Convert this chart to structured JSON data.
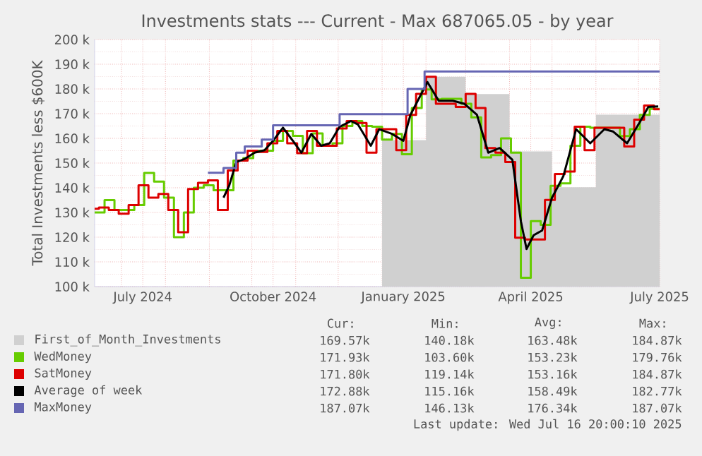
{
  "chart_data": {
    "type": "line",
    "title": "Investments stats --- Current - Max 687065.05 - by year",
    "ylabel": "Total Investments less $600K",
    "xlim": [
      "2024-06-12",
      "2025-07-16"
    ],
    "xticks": [
      {
        "value": "2024-07-16",
        "label": "July 2024"
      },
      {
        "value": "2024-10-16",
        "label": "October 2024"
      },
      {
        "value": "2025-01-16",
        "label": "January 2025"
      },
      {
        "value": "2025-04-16",
        "label": "April 2025"
      },
      {
        "value": "2025-07-16",
        "label": "July 2025"
      },
      {
        "value": "2024-07-01",
        "label": null
      },
      {
        "value": "2024-08-01",
        "label": null
      },
      {
        "value": "2024-09-01",
        "label": null
      },
      {
        "value": "2024-10-01",
        "label": null
      },
      {
        "value": "2024-11-01",
        "label": null
      },
      {
        "value": "2024-12-01",
        "label": null
      },
      {
        "value": "2025-01-01",
        "label": null
      },
      {
        "value": "2025-02-01",
        "label": null
      },
      {
        "value": "2025-03-01",
        "label": null
      },
      {
        "value": "2025-04-01",
        "label": null
      },
      {
        "value": "2025-05-01",
        "label": null
      },
      {
        "value": "2025-06-01",
        "label": null
      },
      {
        "value": "2025-07-01",
        "label": null
      }
    ],
    "ylim": [
      100,
      200
    ],
    "yticks": [
      {
        "value": 100,
        "label": "100 k"
      },
      {
        "value": 110,
        "label": "110 k"
      },
      {
        "value": 120,
        "label": "120 k"
      },
      {
        "value": 130,
        "label": "130 k"
      },
      {
        "value": 140,
        "label": "140 k"
      },
      {
        "value": 150,
        "label": "150 k"
      },
      {
        "value": 160,
        "label": "160 k"
      },
      {
        "value": 170,
        "label": "170 k"
      },
      {
        "value": 180,
        "label": "180 k"
      },
      {
        "value": 190,
        "label": "190 k"
      },
      {
        "value": 200,
        "label": "200 k"
      }
    ],
    "grid": true,
    "legend": "bottom",
    "series": [
      {
        "name": "First_of_Month_Investments",
        "type": "area",
        "color": "#d0d0d0",
        "x": [
          "2025-01-01",
          "2025-02-01",
          "2025-03-01",
          "2025-04-01",
          "2025-05-01",
          "2025-06-01",
          "2025-07-16"
        ],
        "values": [
          159.3,
          184.9,
          177.9,
          154.7,
          140.2,
          169.6,
          169.6
        ]
      },
      {
        "name": "WedMoney",
        "type": "step",
        "color": "#66cc00",
        "x": [
          "2024-06-12",
          "2024-06-19",
          "2024-06-26",
          "2024-07-03",
          "2024-07-10",
          "2024-07-17",
          "2024-07-24",
          "2024-07-31",
          "2024-08-07",
          "2024-08-14",
          "2024-08-21",
          "2024-08-28",
          "2024-09-04",
          "2024-09-11",
          "2024-09-18",
          "2024-09-25",
          "2024-10-02",
          "2024-10-09",
          "2024-10-16",
          "2024-10-23",
          "2024-10-30",
          "2024-11-06",
          "2024-11-13",
          "2024-11-20",
          "2024-11-27",
          "2024-12-04",
          "2024-12-11",
          "2024-12-18",
          "2024-12-25",
          "2025-01-01",
          "2025-01-08",
          "2025-01-15",
          "2025-01-22",
          "2025-01-29",
          "2025-02-05",
          "2025-02-12",
          "2025-02-19",
          "2025-02-26",
          "2025-03-05",
          "2025-03-12",
          "2025-03-19",
          "2025-03-26",
          "2025-04-02",
          "2025-04-09",
          "2025-04-16",
          "2025-04-23",
          "2025-04-30",
          "2025-05-07",
          "2025-05-14",
          "2025-05-21",
          "2025-05-28",
          "2025-06-04",
          "2025-06-11",
          "2025-06-18",
          "2025-06-25",
          "2025-07-02",
          "2025-07-09",
          "2025-07-16"
        ],
        "values": [
          130,
          135,
          131,
          131,
          133,
          146,
          142.5,
          136,
          120,
          130,
          140,
          141,
          139,
          139,
          151,
          152,
          155,
          155,
          159,
          163,
          161,
          154,
          162,
          157,
          158,
          165,
          167,
          165,
          164.7,
          159.5,
          161.8,
          153.6,
          172.3,
          179.8,
          175.8,
          176,
          176,
          174,
          168.5,
          152.3,
          153.2,
          160,
          154.2,
          103.6,
          126.5,
          125,
          140.8,
          141.8,
          157,
          164.7,
          164.3,
          164.3,
          164.3,
          160.9,
          163.7,
          169.5,
          171.9,
          171.9
        ]
      },
      {
        "name": "SatMoney",
        "type": "step",
        "color": "#dd0000",
        "x": [
          "2024-06-12",
          "2024-06-15",
          "2024-06-22",
          "2024-06-29",
          "2024-07-06",
          "2024-07-13",
          "2024-07-20",
          "2024-07-27",
          "2024-08-03",
          "2024-08-10",
          "2024-08-17",
          "2024-08-24",
          "2024-08-31",
          "2024-09-07",
          "2024-09-14",
          "2024-09-21",
          "2024-09-28",
          "2024-10-05",
          "2024-10-12",
          "2024-10-19",
          "2024-10-26",
          "2024-11-02",
          "2024-11-09",
          "2024-11-16",
          "2024-11-23",
          "2024-11-30",
          "2024-12-07",
          "2024-12-14",
          "2024-12-21",
          "2024-12-28",
          "2025-01-04",
          "2025-01-11",
          "2025-01-18",
          "2025-01-25",
          "2025-02-01",
          "2025-02-08",
          "2025-02-15",
          "2025-02-22",
          "2025-03-01",
          "2025-03-08",
          "2025-03-15",
          "2025-03-22",
          "2025-03-29",
          "2025-04-05",
          "2025-04-12",
          "2025-04-19",
          "2025-04-26",
          "2025-05-03",
          "2025-05-10",
          "2025-05-17",
          "2025-05-24",
          "2025-05-31",
          "2025-06-07",
          "2025-06-14",
          "2025-06-21",
          "2025-06-28",
          "2025-07-05",
          "2025-07-12",
          "2025-07-16"
        ],
        "values": [
          131.5,
          132,
          131,
          129.5,
          133,
          141,
          136,
          137.5,
          131,
          122,
          139.5,
          142,
          143,
          131,
          147,
          151,
          155,
          154.5,
          158,
          163,
          158,
          154,
          163,
          157,
          157,
          164,
          167,
          166.2,
          154.2,
          163.7,
          163.7,
          155.2,
          169.5,
          178,
          184.9,
          174,
          174,
          172.7,
          178,
          172.3,
          156.1,
          154.2,
          150.4,
          119.8,
          119.1,
          119.1,
          135.1,
          145.6,
          146.6,
          164.7,
          155.2,
          164.3,
          164.3,
          164.3,
          156.7,
          167.6,
          173.3,
          171.8,
          171.8
        ]
      },
      {
        "name": "Average of week",
        "color": "#000000",
        "x": [
          "2024-09-11",
          "2024-09-15",
          "2024-09-20",
          "2024-09-26",
          "2024-10-03",
          "2024-10-10",
          "2024-10-16",
          "2024-10-23",
          "2024-10-30",
          "2024-11-05",
          "2024-11-12",
          "2024-11-19",
          "2024-11-25",
          "2024-12-02",
          "2024-12-10",
          "2024-12-15",
          "2024-12-24",
          "2024-12-30",
          "2025-01-08",
          "2025-01-16",
          "2025-01-21",
          "2025-02-02",
          "2025-02-10",
          "2025-02-20",
          "2025-02-28",
          "2025-03-09",
          "2025-03-17",
          "2025-03-25",
          "2025-04-03",
          "2025-04-09",
          "2025-04-13",
          "2025-04-18",
          "2025-04-24",
          "2025-05-01",
          "2025-05-09",
          "2025-05-18",
          "2025-05-28",
          "2025-06-07",
          "2025-06-13",
          "2025-06-23",
          "2025-07-02",
          "2025-07-08",
          "2025-07-15"
        ],
        "values": [
          136,
          140.8,
          150.4,
          151.7,
          154.2,
          155.2,
          159,
          164.3,
          159,
          154.2,
          161.8,
          157,
          158,
          164.7,
          167,
          165.6,
          157,
          163.7,
          161.8,
          159,
          169.5,
          182.8,
          175.2,
          175.2,
          174,
          169.5,
          154.2,
          156.1,
          151.3,
          126.5,
          115.2,
          120.8,
          122.7,
          136,
          144.7,
          163.7,
          158,
          163.7,
          162.8,
          158,
          166.6,
          172.7,
          172.9
        ]
      },
      {
        "name": "MaxMoney",
        "type": "step",
        "color": "#6666b3",
        "x": [
          "2024-08-31",
          "2024-09-11",
          "2024-09-20",
          "2024-09-26",
          "2024-10-08",
          "2024-10-16",
          "2024-12-02",
          "2025-01-19",
          "2025-01-31",
          "2025-07-16"
        ],
        "values": [
          146.1,
          148,
          154.2,
          156.7,
          159.5,
          165.3,
          169.8,
          180,
          187.1,
          187.1
        ]
      }
    ],
    "annotations": [
      "Cur:",
      "Min:",
      "Avg:",
      "Max:",
      "169.57k",
      "140.18k",
      "163.48k",
      "184.87k",
      "171.93k",
      "103.60k",
      "153.23k",
      "179.76k",
      "171.80k",
      "119.14k",
      "153.16k",
      "184.87k",
      "172.88k",
      "115.16k",
      "158.49k",
      "182.77k",
      "187.07k",
      "146.13k",
      "176.34k",
      "187.07k",
      "Last update: Wed Jul 16 20:00:10 2025"
    ]
  }
}
